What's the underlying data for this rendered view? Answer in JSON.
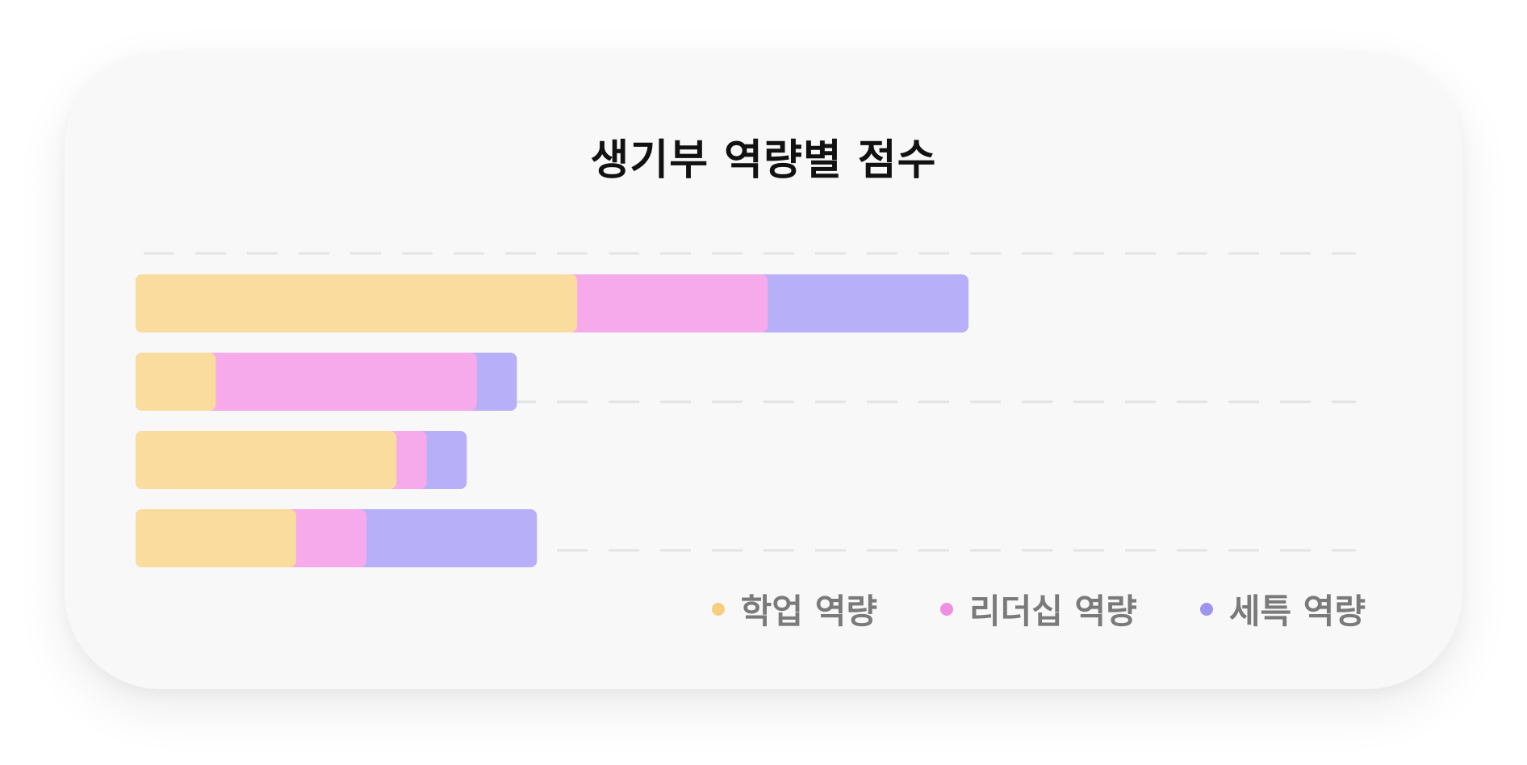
{
  "chart_data": {
    "type": "bar",
    "orientation": "horizontal",
    "stacked": true,
    "title": "생기부 역량별 점수",
    "categories": [
      "",
      "",
      "",
      ""
    ],
    "series": [
      {
        "name": "학업 역량",
        "color": "#f9dc9e",
        "values": [
          44,
          8,
          26,
          16
        ]
      },
      {
        "name": "리더십 역량",
        "color": "#f6aaec",
        "values": [
          19,
          26,
          3,
          7
        ]
      },
      {
        "name": "세특 역량",
        "color": "#b7b0f8",
        "values": [
          20,
          4,
          4,
          17
        ]
      }
    ],
    "legend_dot_colors": [
      "#f5cf7f",
      "#ef8fe2",
      "#9c94ef"
    ],
    "xlim": [
      0,
      120
    ],
    "grid": true,
    "legend_position": "bottom-right"
  }
}
